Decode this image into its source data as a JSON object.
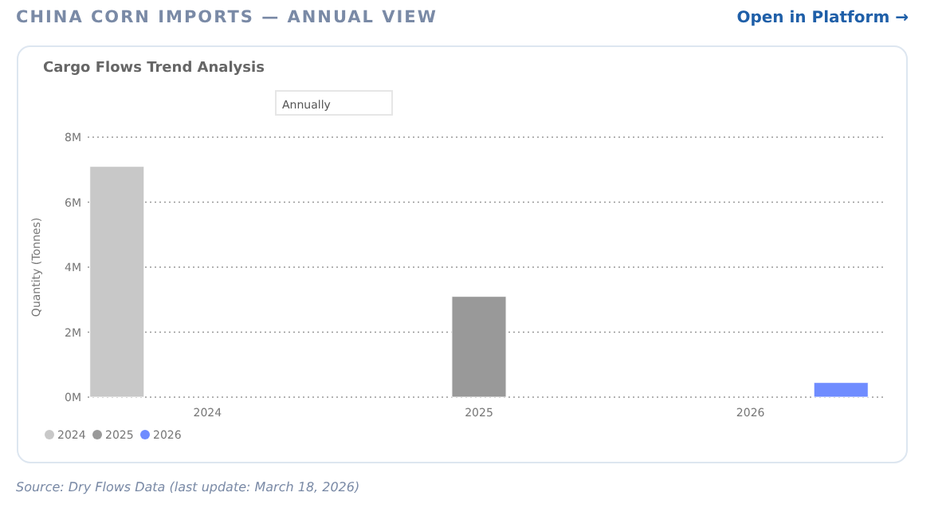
{
  "chart_data": {
    "type": "bar",
    "title": "CHINA CORN IMPORTS — ANNUAL VIEW",
    "subtitle": "Cargo Flows Trend Analysis",
    "ylabel": "Quantity (Tonnes)",
    "categories": [
      "2024",
      "2025",
      "2026"
    ],
    "series": [
      {
        "name": "2024",
        "color": "#c8c8c8",
        "values": [
          7.1,
          null,
          null
        ]
      },
      {
        "name": "2025",
        "color": "#999999",
        "values": [
          null,
          3.1,
          null
        ]
      },
      {
        "name": "2026",
        "color": "#6f8cff",
        "values": [
          null,
          null,
          0.45
        ]
      }
    ],
    "ylim": [
      0,
      8
    ],
    "yticks": [
      {
        "value": 0,
        "label": "0M"
      },
      {
        "value": 2,
        "label": "2M"
      },
      {
        "value": 4,
        "label": "4M"
      },
      {
        "value": 6,
        "label": "6M"
      },
      {
        "value": 8,
        "label": "8M"
      }
    ],
    "grid": "y",
    "legend": "bottom left",
    "annotations": [
      "Open in Platform →",
      "Annually",
      "Source: Dry Flows Data (last update: March 18, 2026)"
    ]
  }
}
